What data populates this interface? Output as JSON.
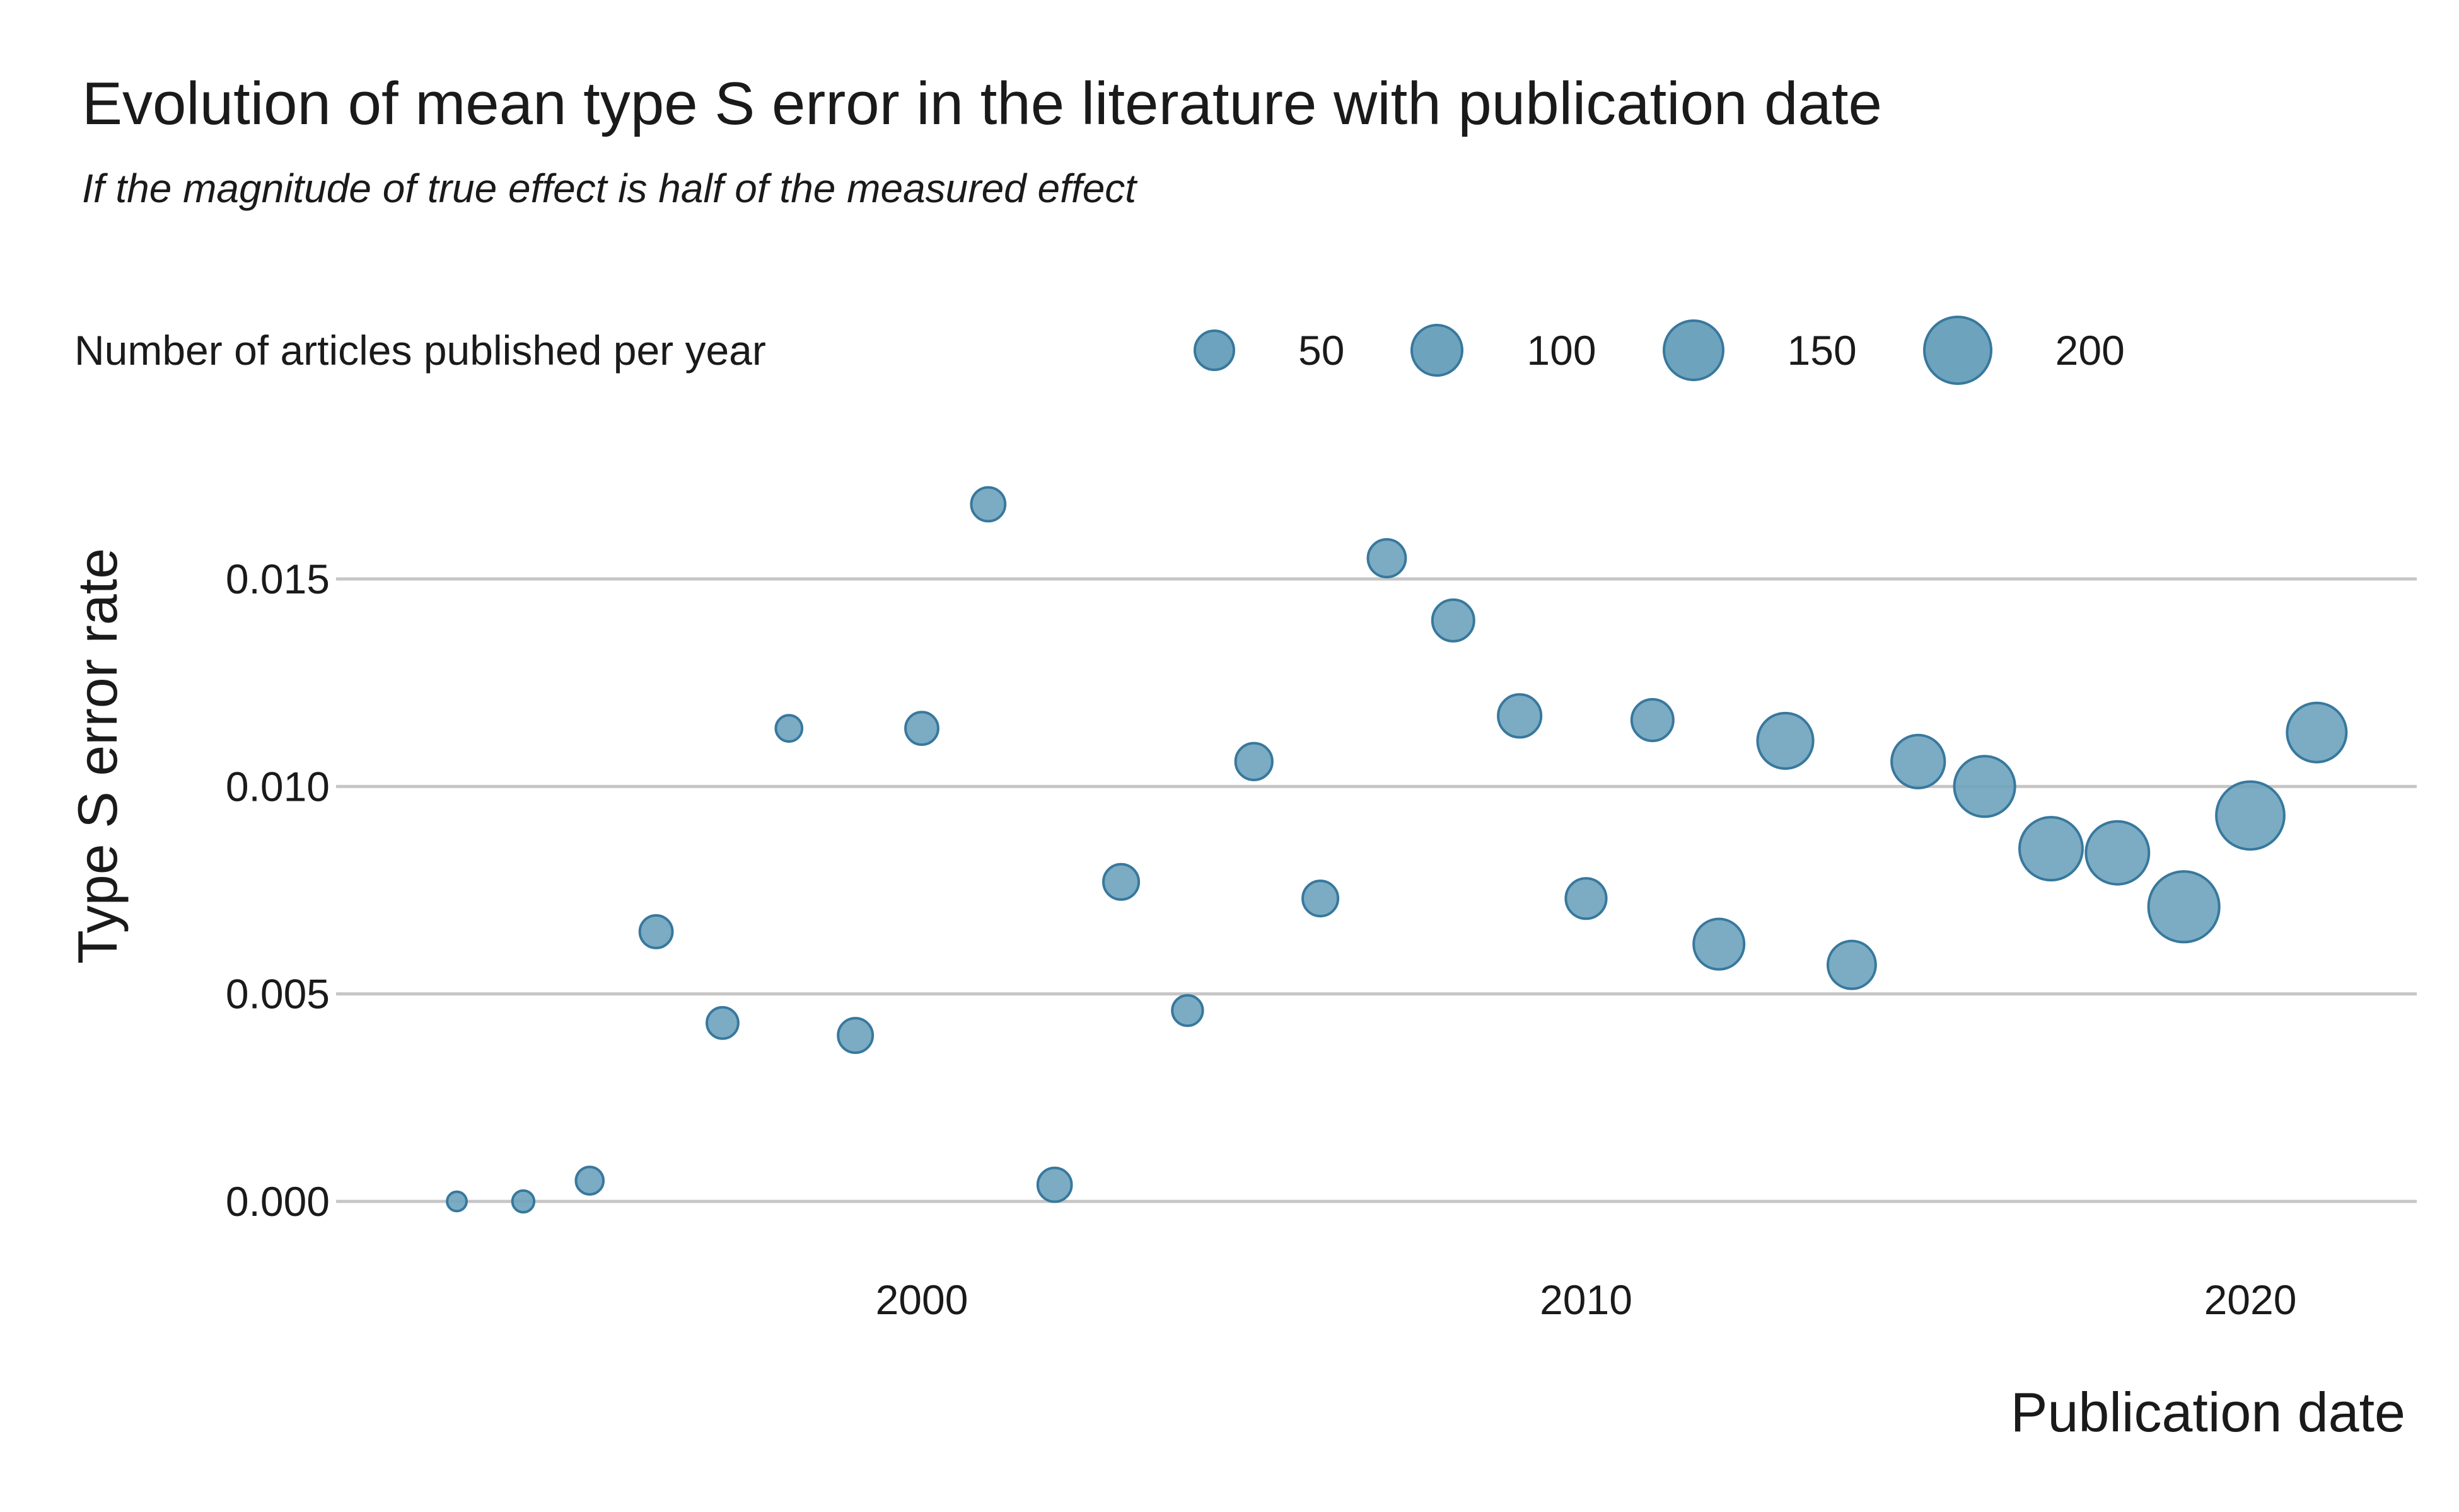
{
  "header": {
    "title": "Evolution of mean type S error in the literature with publication date",
    "subtitle": "If the magnitude of true effect is half of the measured effect"
  },
  "size_legend": {
    "label": "Number of articles published per year",
    "sizes": [
      50,
      100,
      150,
      200
    ]
  },
  "axes": {
    "xlabel": "Publication date",
    "ylabel": "Type S error rate"
  },
  "colors": {
    "bubble_fill": "#6da3bd",
    "bubble_stroke": "#38789d",
    "gridline": "#c6c6c6",
    "text": "#1a1a1a",
    "background": "#ffffff"
  },
  "chart_data": {
    "type": "scatter",
    "title": "Evolution of mean type S error in the literature with publication date",
    "subtitle": "If the magnitude of true effect is half of the measured effect",
    "xlabel": "Publication date",
    "ylabel": "Type S error rate",
    "x_ticks": [
      2000,
      2010,
      2020
    ],
    "y_ticks": [
      0.0,
      0.005,
      0.01,
      0.015
    ],
    "xlim": [
      1992.3,
      2022.5
    ],
    "ylim": [
      -0.0011,
      0.0183
    ],
    "grid": "horizontal-only",
    "legend_position": "top",
    "size_encoding": "Number of articles published per year",
    "size_legend_values": [
      50,
      100,
      150,
      200
    ],
    "points": [
      {
        "year": 1993,
        "rate": 0.0,
        "articles": 2
      },
      {
        "year": 1994,
        "rate": 0.0,
        "articles": 4
      },
      {
        "year": 1995,
        "rate": 0.0005,
        "articles": 12
      },
      {
        "year": 1996,
        "rate": 0.0065,
        "articles": 23
      },
      {
        "year": 1997,
        "rate": 0.0043,
        "articles": 20
      },
      {
        "year": 1998,
        "rate": 0.0114,
        "articles": 10
      },
      {
        "year": 1999,
        "rate": 0.004,
        "articles": 28
      },
      {
        "year": 2000,
        "rate": 0.0114,
        "articles": 23
      },
      {
        "year": 2001,
        "rate": 0.0168,
        "articles": 26
      },
      {
        "year": 2002,
        "rate": 0.0004,
        "articles": 26
      },
      {
        "year": 2003,
        "rate": 0.0077,
        "articles": 30
      },
      {
        "year": 2004,
        "rate": 0.0046,
        "articles": 18
      },
      {
        "year": 2005,
        "rate": 0.0106,
        "articles": 34
      },
      {
        "year": 2006,
        "rate": 0.0073,
        "articles": 30
      },
      {
        "year": 2007,
        "rate": 0.0155,
        "articles": 37
      },
      {
        "year": 2008,
        "rate": 0.014,
        "articles": 50
      },
      {
        "year": 2009,
        "rate": 0.0117,
        "articles": 55
      },
      {
        "year": 2010,
        "rate": 0.0073,
        "articles": 46
      },
      {
        "year": 2011,
        "rate": 0.0116,
        "articles": 50
      },
      {
        "year": 2012,
        "rate": 0.0062,
        "articles": 87
      },
      {
        "year": 2013,
        "rate": 0.0111,
        "articles": 113
      },
      {
        "year": 2014,
        "rate": 0.0057,
        "articles": 75
      },
      {
        "year": 2015,
        "rate": 0.0106,
        "articles": 100
      },
      {
        "year": 2016,
        "rate": 0.01,
        "articles": 142
      },
      {
        "year": 2017,
        "rate": 0.0085,
        "articles": 157
      },
      {
        "year": 2018,
        "rate": 0.0084,
        "articles": 157
      },
      {
        "year": 2019,
        "rate": 0.0071,
        "articles": 210
      },
      {
        "year": 2020,
        "rate": 0.0093,
        "articles": 190
      },
      {
        "year": 2021,
        "rate": 0.0113,
        "articles": 134
      }
    ]
  }
}
